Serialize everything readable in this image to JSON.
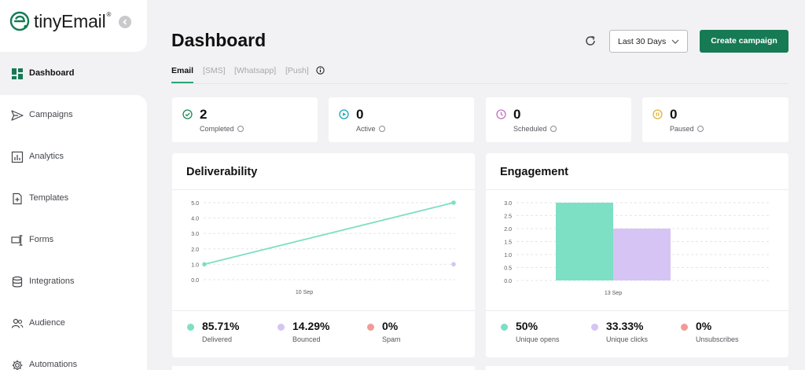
{
  "app": {
    "brand": "tinyEmail",
    "brand_mark": "®"
  },
  "sidebar": {
    "items": [
      {
        "label": "Dashboard",
        "icon": "dashboard-grid-icon",
        "active": true
      },
      {
        "label": "Campaigns",
        "icon": "send-icon"
      },
      {
        "label": "Analytics",
        "icon": "analytics-chart-icon"
      },
      {
        "label": "Templates",
        "icon": "template-file-icon"
      },
      {
        "label": "Forms",
        "icon": "form-icon"
      },
      {
        "label": "Integrations",
        "icon": "database-icon"
      },
      {
        "label": "Audience",
        "icon": "users-icon"
      },
      {
        "label": "Automations",
        "icon": "gear-icon"
      }
    ]
  },
  "header": {
    "title": "Dashboard",
    "date_range": "Last 30 Days",
    "create_button": "Create campaign"
  },
  "tabs": [
    {
      "label": "Email",
      "active": true
    },
    {
      "label": "[SMS]"
    },
    {
      "label": "[Whatsapp]"
    },
    {
      "label": "[Push]"
    }
  ],
  "stats": [
    {
      "value": "2",
      "label": "Completed",
      "icon": "check-circle-icon",
      "color": "#1f8a5c"
    },
    {
      "value": "0",
      "label": "Active",
      "icon": "play-circle-icon",
      "color": "#1aa6b7"
    },
    {
      "value": "0",
      "label": "Scheduled",
      "icon": "clock-icon",
      "color": "#c86fbf"
    },
    {
      "value": "0",
      "label": "Paused",
      "icon": "pause-circle-icon",
      "color": "#e2b43c"
    }
  ],
  "deliverability": {
    "title": "Deliverability",
    "metrics": [
      {
        "value": "85.71%",
        "label": "Delivered",
        "color": "#7ddfc3"
      },
      {
        "value": "14.29%",
        "label": "Bounced",
        "color": "#d6c4f5"
      },
      {
        "value": "0%",
        "label": "Spam",
        "color": "#f29a9a"
      }
    ]
  },
  "engagement": {
    "title": "Engagement",
    "metrics": [
      {
        "value": "50%",
        "label": "Unique opens",
        "color": "#7ddfc3"
      },
      {
        "value": "33.33%",
        "label": "Unique clicks",
        "color": "#d6c4f5"
      },
      {
        "value": "0%",
        "label": "Unsubscribes",
        "color": "#f29a9a"
      }
    ]
  },
  "chart_data": [
    {
      "type": "line",
      "title": "Deliverability",
      "x_tick_labels": [
        "10 Sep"
      ],
      "y_ticks": [
        "0.0",
        "1.0",
        "2.0",
        "3.0",
        "4.0",
        "5.0"
      ],
      "ylim": [
        0,
        5
      ],
      "series": [
        {
          "values": [
            1,
            5
          ],
          "color": "#7ddfc3"
        },
        {
          "values": [
            null,
            1
          ],
          "color": "#d6c4f5"
        }
      ],
      "grid": true
    },
    {
      "type": "bar",
      "title": "Engagement",
      "categories": [
        "13 Sep"
      ],
      "y_ticks": [
        "0.0",
        "0.5",
        "1.0",
        "1.5",
        "2.0",
        "2.5",
        "3.0"
      ],
      "ylim": [
        0,
        3
      ],
      "series": [
        {
          "values": [
            3
          ],
          "color": "#7ddfc3"
        },
        {
          "values": [
            2
          ],
          "color": "#d6c4f5"
        }
      ],
      "grid": true
    }
  ]
}
